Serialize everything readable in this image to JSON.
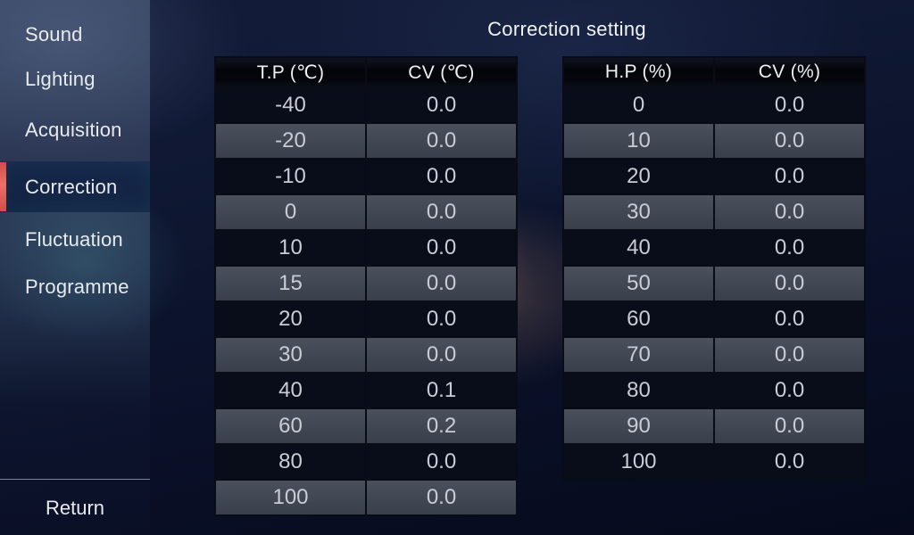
{
  "title": "Correction setting",
  "sidebar": {
    "items": [
      {
        "label": "Sound",
        "selected": false
      },
      {
        "label": "Lighting",
        "selected": false
      },
      {
        "label": "Acquisition",
        "selected": false
      },
      {
        "label": "Correction",
        "selected": true
      },
      {
        "label": "Fluctuation",
        "selected": false
      },
      {
        "label": "Programme",
        "selected": false
      }
    ],
    "return_label": "Return",
    "accent_color": "#E0544E"
  },
  "tables": [
    {
      "name": "temperature-correction",
      "columns": [
        "T.P (℃)",
        "CV (℃)"
      ],
      "rows": [
        [
          "-40",
          "0.0"
        ],
        [
          "-20",
          "0.0"
        ],
        [
          "-10",
          "0.0"
        ],
        [
          "0",
          "0.0"
        ],
        [
          "10",
          "0.0"
        ],
        [
          "15",
          "0.0"
        ],
        [
          "20",
          "0.0"
        ],
        [
          "30",
          "0.0"
        ],
        [
          "40",
          "0.1"
        ],
        [
          "60",
          "0.2"
        ],
        [
          "80",
          "0.0"
        ],
        [
          "100",
          "0.0"
        ]
      ]
    },
    {
      "name": "humidity-correction",
      "columns": [
        "H.P (%)",
        "CV (%)"
      ],
      "rows": [
        [
          "0",
          "0.0"
        ],
        [
          "10",
          "0.0"
        ],
        [
          "20",
          "0.0"
        ],
        [
          "30",
          "0.0"
        ],
        [
          "40",
          "0.0"
        ],
        [
          "50",
          "0.0"
        ],
        [
          "60",
          "0.0"
        ],
        [
          "70",
          "0.0"
        ],
        [
          "80",
          "0.0"
        ],
        [
          "90",
          "0.0"
        ],
        [
          "100",
          "0.0"
        ]
      ]
    }
  ],
  "colors": {
    "accent": "#E0544E",
    "background_base": "#0A1028",
    "purple_glow": "#96607A"
  }
}
